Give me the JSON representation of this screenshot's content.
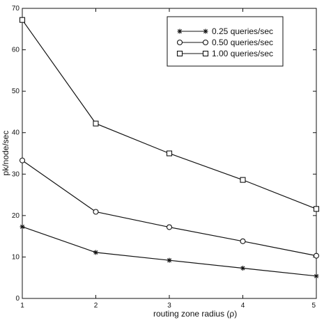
{
  "chart_data": {
    "type": "line",
    "title": "",
    "xlabel": "routing zone radius (ρ)",
    "ylabel": "pk/node/sec",
    "x": [
      1,
      2,
      3,
      4,
      5
    ],
    "xlim": [
      1,
      5
    ],
    "ylim": [
      0,
      70
    ],
    "xticks": [
      "1",
      "2",
      "3",
      "4",
      "5"
    ],
    "yticks": [
      "0",
      "10",
      "20",
      "30",
      "40",
      "50",
      "60",
      "70"
    ],
    "grid": false,
    "legend_position": "top-right",
    "series": [
      {
        "name": "0.25 queries/sec",
        "marker": "star",
        "values": [
          17.3,
          11.1,
          9.2,
          7.3,
          5.4
        ]
      },
      {
        "name": "0.50 queries/sec",
        "marker": "circle",
        "values": [
          33.3,
          20.9,
          17.2,
          13.8,
          10.3
        ]
      },
      {
        "name": "1.00 queries/sec",
        "marker": "square",
        "values": [
          67.2,
          42.2,
          35.0,
          28.6,
          21.6
        ]
      }
    ],
    "colors": {
      "line": "#111111",
      "background": "#ffffff"
    }
  }
}
